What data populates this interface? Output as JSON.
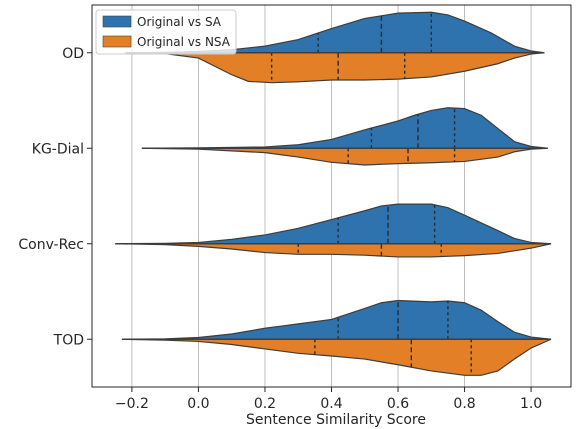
{
  "chart_data": {
    "type": "violin",
    "orientation": "horizontal",
    "split": true,
    "xlabel": "Sentence Similarity Score",
    "ylabel": "",
    "xlim": [
      -0.32,
      1.12
    ],
    "xticks": [
      -0.2,
      0.0,
      0.2,
      0.4,
      0.6,
      0.8,
      1.0
    ],
    "xtick_labels": [
      "−0.2",
      "0.0",
      "0.2",
      "0.4",
      "0.6",
      "0.8",
      "1.0"
    ],
    "grid": "vertical",
    "legend_position": "upper-left",
    "categories": [
      "OD",
      "KG-Dial",
      "Conv-Rec",
      "TOD"
    ],
    "series": [
      {
        "name": "Original vs SA",
        "color": "#2e73ad",
        "side": "upper",
        "violins": [
          {
            "category": "OD",
            "range": [
              -0.22,
              1.04
            ],
            "quartiles": [
              0.36,
              0.55,
              0.7
            ],
            "profile": [
              [
                -0.22,
                0.0
              ],
              [
                -0.1,
                0.01
              ],
              [
                0.0,
                0.03
              ],
              [
                0.1,
                0.07
              ],
              [
                0.2,
                0.15
              ],
              [
                0.3,
                0.3
              ],
              [
                0.4,
                0.55
              ],
              [
                0.5,
                0.78
              ],
              [
                0.55,
                0.84
              ],
              [
                0.6,
                0.9
              ],
              [
                0.7,
                0.92
              ],
              [
                0.75,
                0.86
              ],
              [
                0.8,
                0.72
              ],
              [
                0.88,
                0.45
              ],
              [
                0.95,
                0.15
              ],
              [
                1.0,
                0.04
              ],
              [
                1.04,
                0.0
              ]
            ]
          },
          {
            "category": "KG-Dial",
            "range": [
              -0.17,
              1.05
            ],
            "quartiles": [
              0.52,
              0.66,
              0.77
            ],
            "profile": [
              [
                -0.17,
                0.0
              ],
              [
                0.0,
                0.01
              ],
              [
                0.2,
                0.03
              ],
              [
                0.3,
                0.08
              ],
              [
                0.4,
                0.2
              ],
              [
                0.5,
                0.42
              ],
              [
                0.6,
                0.62
              ],
              [
                0.65,
                0.75
              ],
              [
                0.7,
                0.86
              ],
              [
                0.75,
                0.92
              ],
              [
                0.8,
                0.9
              ],
              [
                0.85,
                0.75
              ],
              [
                0.9,
                0.45
              ],
              [
                0.95,
                0.15
              ],
              [
                1.0,
                0.04
              ],
              [
                1.05,
                0.0
              ]
            ]
          },
          {
            "category": "Conv-Rec",
            "range": [
              -0.25,
              1.06
            ],
            "quartiles": [
              0.42,
              0.57,
              0.71
            ],
            "profile": [
              [
                -0.25,
                0.0
              ],
              [
                -0.1,
                0.01
              ],
              [
                0.0,
                0.03
              ],
              [
                0.1,
                0.1
              ],
              [
                0.2,
                0.2
              ],
              [
                0.3,
                0.35
              ],
              [
                0.4,
                0.55
              ],
              [
                0.5,
                0.75
              ],
              [
                0.55,
                0.86
              ],
              [
                0.6,
                0.9
              ],
              [
                0.7,
                0.9
              ],
              [
                0.75,
                0.82
              ],
              [
                0.8,
                0.65
              ],
              [
                0.9,
                0.3
              ],
              [
                0.95,
                0.12
              ],
              [
                1.0,
                0.03
              ],
              [
                1.06,
                0.0
              ]
            ]
          },
          {
            "category": "TOD",
            "range": [
              -0.23,
              1.06
            ],
            "quartiles": [
              0.42,
              0.6,
              0.75
            ],
            "profile": [
              [
                -0.23,
                0.0
              ],
              [
                -0.1,
                0.01
              ],
              [
                0.0,
                0.04
              ],
              [
                0.1,
                0.12
              ],
              [
                0.2,
                0.25
              ],
              [
                0.25,
                0.3
              ],
              [
                0.3,
                0.35
              ],
              [
                0.4,
                0.45
              ],
              [
                0.5,
                0.7
              ],
              [
                0.55,
                0.83
              ],
              [
                0.6,
                0.88
              ],
              [
                0.7,
                0.85
              ],
              [
                0.75,
                0.87
              ],
              [
                0.8,
                0.83
              ],
              [
                0.85,
                0.66
              ],
              [
                0.9,
                0.4
              ],
              [
                0.95,
                0.16
              ],
              [
                1.0,
                0.05
              ],
              [
                1.06,
                0.0
              ]
            ]
          }
        ]
      },
      {
        "name": "Original vs NSA",
        "color": "#e27f27",
        "side": "lower",
        "violins": [
          {
            "category": "OD",
            "range": [
              -0.22,
              1.04
            ],
            "quartiles": [
              0.22,
              0.42,
              0.62
            ],
            "profile": [
              [
                -0.22,
                0.0
              ],
              [
                -0.1,
                0.02
              ],
              [
                0.0,
                0.12
              ],
              [
                0.1,
                0.5
              ],
              [
                0.15,
                0.65
              ],
              [
                0.22,
                0.68
              ],
              [
                0.3,
                0.66
              ],
              [
                0.4,
                0.62
              ],
              [
                0.5,
                0.62
              ],
              [
                0.6,
                0.6
              ],
              [
                0.7,
                0.55
              ],
              [
                0.8,
                0.42
              ],
              [
                0.9,
                0.25
              ],
              [
                0.95,
                0.12
              ],
              [
                1.0,
                0.03
              ],
              [
                1.04,
                0.0
              ]
            ]
          },
          {
            "category": "KG-Dial",
            "range": [
              -0.17,
              1.05
            ],
            "quartiles": [
              0.45,
              0.63,
              0.77
            ],
            "profile": [
              [
                -0.17,
                0.0
              ],
              [
                0.0,
                0.02
              ],
              [
                0.2,
                0.1
              ],
              [
                0.3,
                0.2
              ],
              [
                0.4,
                0.32
              ],
              [
                0.5,
                0.38
              ],
              [
                0.6,
                0.35
              ],
              [
                0.7,
                0.33
              ],
              [
                0.8,
                0.3
              ],
              [
                0.9,
                0.2
              ],
              [
                0.95,
                0.08
              ],
              [
                1.0,
                0.02
              ],
              [
                1.05,
                0.0
              ]
            ]
          },
          {
            "category": "Conv-Rec",
            "range": [
              -0.25,
              1.06
            ],
            "quartiles": [
              0.3,
              0.55,
              0.73
            ],
            "profile": [
              [
                -0.25,
                0.0
              ],
              [
                -0.1,
                0.02
              ],
              [
                0.0,
                0.06
              ],
              [
                0.1,
                0.12
              ],
              [
                0.2,
                0.2
              ],
              [
                0.3,
                0.24
              ],
              [
                0.4,
                0.24
              ],
              [
                0.5,
                0.26
              ],
              [
                0.6,
                0.3
              ],
              [
                0.7,
                0.3
              ],
              [
                0.8,
                0.27
              ],
              [
                0.9,
                0.22
              ],
              [
                1.0,
                0.1
              ],
              [
                1.06,
                0.0
              ]
            ]
          },
          {
            "category": "TOD",
            "range": [
              -0.23,
              1.06
            ],
            "quartiles": [
              0.35,
              0.64,
              0.82
            ],
            "profile": [
              [
                -0.23,
                0.0
              ],
              [
                -0.1,
                0.02
              ],
              [
                0.0,
                0.05
              ],
              [
                0.1,
                0.12
              ],
              [
                0.2,
                0.22
              ],
              [
                0.3,
                0.32
              ],
              [
                0.4,
                0.38
              ],
              [
                0.5,
                0.45
              ],
              [
                0.6,
                0.58
              ],
              [
                0.7,
                0.72
              ],
              [
                0.8,
                0.82
              ],
              [
                0.85,
                0.82
              ],
              [
                0.9,
                0.72
              ],
              [
                0.95,
                0.45
              ],
              [
                1.0,
                0.2
              ],
              [
                1.06,
                0.0
              ]
            ]
          }
        ]
      }
    ]
  }
}
